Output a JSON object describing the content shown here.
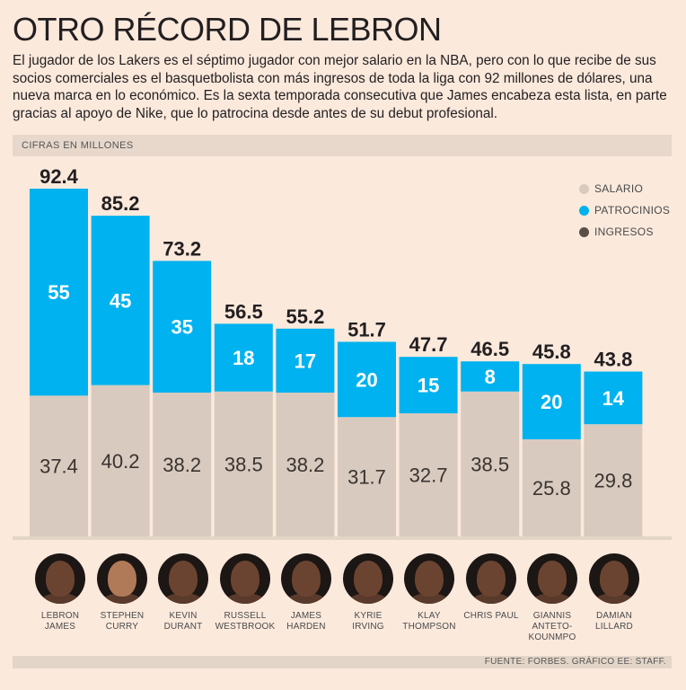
{
  "header": {
    "title": "OTRO RÉCORD DE LEBRON",
    "subtitle": "El jugador de los Lakers es el séptimo jugador con mejor salario en la NBA, pero con lo que recibe de sus socios comerciales es el basquetbolista con más ingresos de toda la liga con 92 millones de dólares, una nueva marca en lo económico. Es la sexta temporada consecutiva que James encabeza esta lista, en parte gracias al apoyo de Nike, que lo patrocina desde antes de su debut profesional."
  },
  "units": "CIFRAS EN MILLONES",
  "legend": [
    {
      "label": "SALARIO",
      "color": "#d8cabe"
    },
    {
      "label": "PATROCINIOS",
      "color": "#00b2ef"
    },
    {
      "label": "INGRESOS",
      "color": "#5a4f47"
    }
  ],
  "players": [
    {
      "line1": "LEBRON",
      "line2": "JAMES",
      "line3": ""
    },
    {
      "line1": "STEPHEN",
      "line2": "CURRY",
      "line3": ""
    },
    {
      "line1": "KEVIN",
      "line2": "DURANT",
      "line3": ""
    },
    {
      "line1": "RUSSELL",
      "line2": "WESTBROOK",
      "line3": ""
    },
    {
      "line1": "JAMES",
      "line2": "HARDEN",
      "line3": ""
    },
    {
      "line1": "KYRIE",
      "line2": "IRVING",
      "line3": ""
    },
    {
      "line1": "KLAY",
      "line2": "THOMPSON",
      "line3": ""
    },
    {
      "line1": "CHRIS PAUL",
      "line2": "",
      "line3": ""
    },
    {
      "line1": "GIANNIS",
      "line2": "ANTETO-",
      "line3": "KOUNMPO"
    },
    {
      "line1": "DAMIAN",
      "line2": "LILLARD",
      "line3": ""
    }
  ],
  "footer": "FUENTE: FORBES. GRÁFICO EE: STAFF.",
  "chart_data": {
    "type": "bar",
    "stacked": true,
    "title": "OTRO RÉCORD DE LEBRON",
    "ylabel": "CIFRAS EN MILLONES",
    "ylim": [
      0,
      92.4
    ],
    "categories": [
      "LEBRON JAMES",
      "STEPHEN CURRY",
      "KEVIN DURANT",
      "RUSSELL WESTBROOK",
      "JAMES HARDEN",
      "KYRIE IRVING",
      "KLAY THOMPSON",
      "CHRIS PAUL",
      "GIANNIS ANTETOKOUNMPO",
      "DAMIAN LILLARD"
    ],
    "series": [
      {
        "name": "SALARIO",
        "color": "#d8cabe",
        "values": [
          37.4,
          40.2,
          38.2,
          38.5,
          38.2,
          31.7,
          32.7,
          38.5,
          25.8,
          29.8
        ],
        "labels": [
          "37.4",
          "40.2",
          "38.2",
          "38.5",
          "38.2",
          "31.7",
          "32.7",
          "38.5",
          "25.8",
          "29.8"
        ]
      },
      {
        "name": "PATROCINIOS",
        "color": "#00b2ef",
        "values": [
          55,
          45,
          35,
          18,
          17,
          20,
          15,
          8,
          20,
          14
        ],
        "labels": [
          "55",
          "45",
          "35",
          "18",
          "17",
          "20",
          "15",
          "8",
          "20",
          "14"
        ]
      }
    ],
    "totals": [
      92.4,
      85.2,
      73.2,
      56.5,
      55.2,
      51.7,
      47.7,
      46.5,
      45.8,
      43.8
    ],
    "total_labels": [
      "92.4",
      "85.2",
      "73.2",
      "56.5",
      "55.2",
      "51.7",
      "47.7",
      "46.5",
      "45.8",
      "43.8"
    ]
  }
}
